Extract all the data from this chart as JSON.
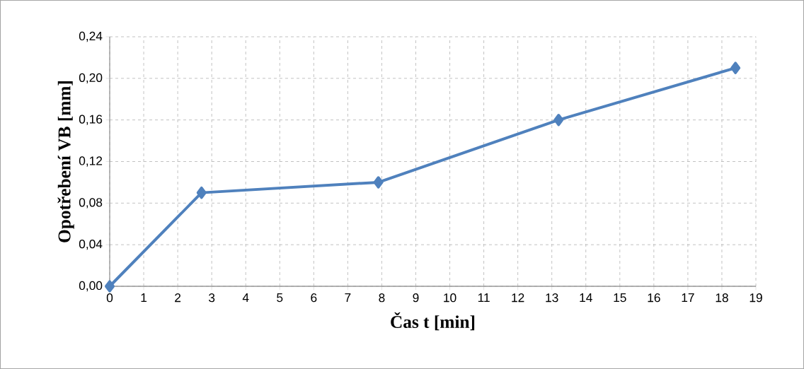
{
  "chart_data": {
    "type": "line",
    "xlabel": "Čas t [min]",
    "ylabel": "Opotřebení VB [mm]",
    "x": [
      0,
      2.7,
      7.9,
      13.2,
      18.4
    ],
    "series": [
      {
        "color": "#4f81bd",
        "values": [
          0,
          0.09,
          0.1,
          0.16,
          0.21
        ]
      }
    ],
    "xlim": [
      0,
      19
    ],
    "xticks": [
      0,
      1,
      2,
      3,
      4,
      5,
      6,
      7,
      8,
      9,
      10,
      11,
      12,
      13,
      14,
      15,
      16,
      17,
      18,
      19
    ],
    "ylim": [
      0,
      0.24
    ],
    "yticks": [
      {
        "value": 0,
        "label": "0,00"
      },
      {
        "value": 0.04,
        "label": "0,04"
      },
      {
        "value": 0.08,
        "label": "0,08"
      },
      {
        "value": 0.12,
        "label": "0,12"
      },
      {
        "value": 0.16,
        "label": "0,16"
      },
      {
        "value": 0.2,
        "label": "0,20"
      },
      {
        "value": 0.24,
        "label": "0,24"
      }
    ],
    "grid": true,
    "marker": "diamond",
    "line_style": "solid"
  }
}
